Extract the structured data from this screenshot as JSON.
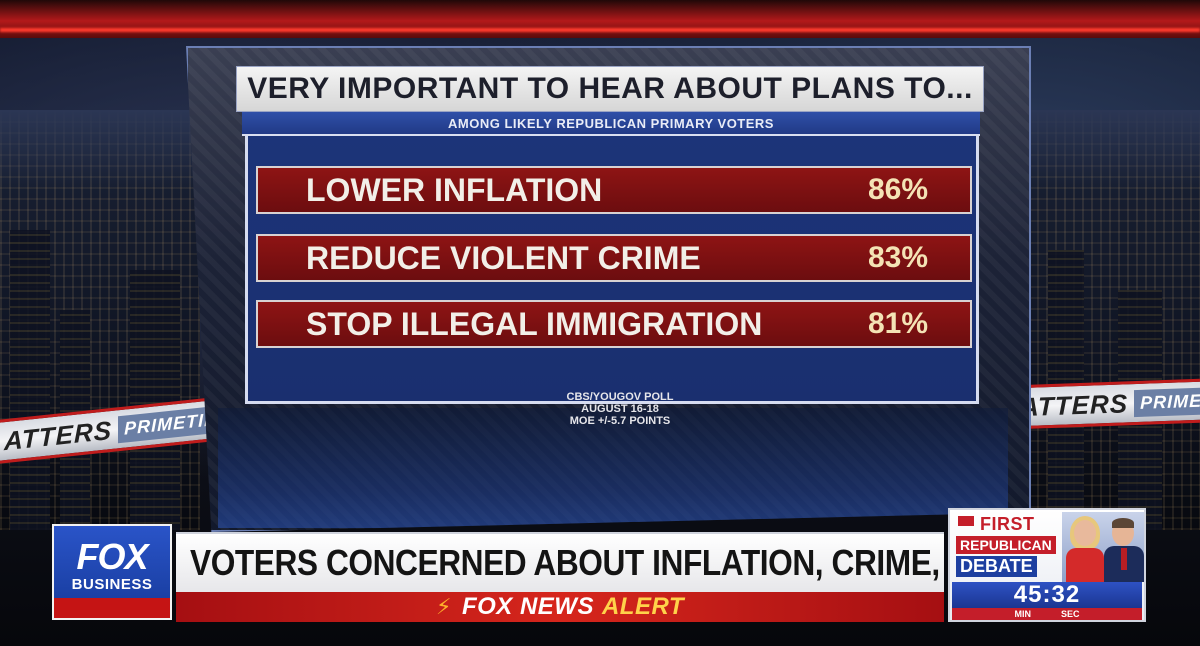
{
  "background": {
    "left_ticker": {
      "word_a": "ATTERS",
      "word_b": "PRIMETIM"
    },
    "right_ticker": {
      "word_a": "ATTERS",
      "word_b": "PRIMETIME"
    }
  },
  "graphic": {
    "title": "VERY IMPORTANT TO HEAR ABOUT PLANS TO...",
    "subtitle": "AMONG LIKELY REPUBLICAN PRIMARY VOTERS",
    "rows": [
      {
        "label": "LOWER INFLATION",
        "value": "86%"
      },
      {
        "label": "REDUCE VIOLENT CRIME",
        "value": "83%"
      },
      {
        "label": "STOP ILLEGAL IMMIGRATION",
        "value": "81%"
      }
    ],
    "source_lines": [
      "CBS/YOUGOV POLL",
      "AUGUST 16-18",
      "MOE +/-5.7 POINTS"
    ]
  },
  "lower_third": {
    "logo_fox": "FOX",
    "logo_business": "BUSINESS",
    "headline": "VOTERS CONCERNED ABOUT INFLATION, CRIME, BORDER",
    "alert_fox": "FOX NEWS",
    "alert_word": "ALERT"
  },
  "countdown": {
    "first": "FIRST",
    "republican": "REPUBLICAN",
    "debate": "DEBATE",
    "timer": "45:32",
    "unit_min": "MIN",
    "unit_sec": "SEC"
  },
  "colors": {
    "accent_red": "#c41e2a",
    "accent_blue": "#1d3fa0",
    "row_red": "#8e1414",
    "value_gold": "#f4e3b5"
  }
}
